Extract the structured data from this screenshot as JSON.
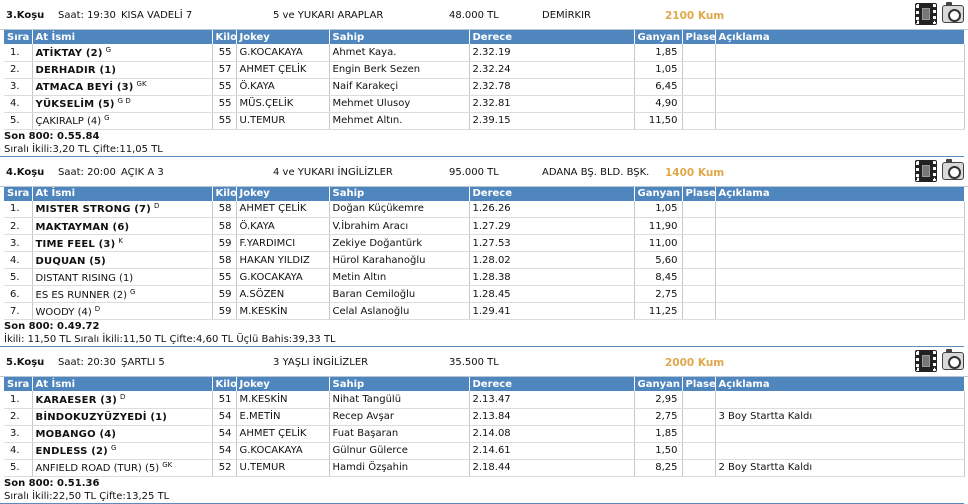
{
  "columns": {
    "sira": "Sıra",
    "at": "At İsmi",
    "kilo": "Kilo",
    "jokey": "Jokey",
    "sahip": "Sahip",
    "derece": "Derece",
    "ganyan": "Ganyan",
    "plase": "Plase",
    "aciklama": "Açıklama"
  },
  "races": [
    {
      "kosu": "3.Koşu",
      "saat": "Saat: 19:30",
      "tip": "KISA VADELİ  7",
      "kosul": "5 ve YUKARI ARAPLAR",
      "ikramiye": "48.000 TL",
      "ek": "DEMİRKIR",
      "pist": "2100 Kum",
      "rows": [
        {
          "sira": "1.",
          "at": "ATİKTAY (2)",
          "sup": "G",
          "bold": true,
          "kilo": "55",
          "jokey": "G.KOCAKAYA",
          "sahip": "Ahmet Kaya.",
          "derece": "2.32.19",
          "ganyan": "1,85",
          "plase": "",
          "aciklama": ""
        },
        {
          "sira": "2.",
          "at": "DERHADIR (1)",
          "sup": "",
          "bold": true,
          "kilo": "57",
          "jokey": "AHMET ÇELİK",
          "sahip": "Engin Berk Sezen",
          "derece": "2.32.24",
          "ganyan": "1,05",
          "plase": "",
          "aciklama": ""
        },
        {
          "sira": "3.",
          "at": "ATMACA BEYİ (3)",
          "sup": "GK",
          "bold": true,
          "kilo": "55",
          "jokey": "Ö.KAYA",
          "sahip": "Naif Karakeçi",
          "derece": "2.32.78",
          "ganyan": "6,45",
          "plase": "",
          "aciklama": ""
        },
        {
          "sira": "4.",
          "at": "YÜKSELİM (5)",
          "sup": "G D",
          "bold": true,
          "kilo": "55",
          "jokey": "MÜS.ÇELİK",
          "sahip": "Mehmet Ulusoy",
          "derece": "2.32.81",
          "ganyan": "4,90",
          "plase": "",
          "aciklama": ""
        },
        {
          "sira": "5.",
          "at": "ÇAKIRALP (4)",
          "sup": "G",
          "bold": false,
          "kilo": "55",
          "jokey": "U.TEMUR",
          "sahip": "Mehmet Altın.",
          "derece": "2.39.15",
          "ganyan": "11,50",
          "plase": "",
          "aciklama": ""
        }
      ],
      "son800": "Son 800: 0.55.84",
      "bahis": "Sıralı İkili:3,20 TL Çifte:11,05 TL"
    },
    {
      "kosu": "4.Koşu",
      "saat": "Saat: 20:00",
      "tip": "AÇIK  A 3",
      "kosul": "4 ve YUKARI İNGİLİZLER",
      "ikramiye": "95.000 TL",
      "ek": "ADANA BŞ. BLD. BŞK.",
      "pist": "1400 Kum",
      "rows": [
        {
          "sira": "1.",
          "at": "MISTER STRONG (7)",
          "sup": "D",
          "bold": true,
          "kilo": "58",
          "jokey": "AHMET ÇELİK",
          "sahip": "Doğan Küçükemre",
          "derece": "1.26.26",
          "ganyan": "1,05",
          "plase": "",
          "aciklama": ""
        },
        {
          "sira": "2.",
          "at": "MAKTAYMAN (6)",
          "sup": "",
          "bold": true,
          "kilo": "58",
          "jokey": "Ö.KAYA",
          "sahip": "V.İbrahim Aracı",
          "derece": "1.27.29",
          "ganyan": "11,90",
          "plase": "",
          "aciklama": ""
        },
        {
          "sira": "3.",
          "at": "TIME FEEL (3)",
          "sup": "K",
          "bold": true,
          "kilo": "59",
          "jokey": "F.YARDIMCI",
          "sahip": "Zekiye Doğantürk",
          "derece": "1.27.53",
          "ganyan": "11,00",
          "plase": "",
          "aciklama": ""
        },
        {
          "sira": "4.",
          "at": "DUQUAN (5)",
          "sup": "",
          "bold": true,
          "kilo": "58",
          "jokey": "HAKAN YILDIZ",
          "sahip": "Hürol Karahanoğlu",
          "derece": "1.28.02",
          "ganyan": "5,60",
          "plase": "",
          "aciklama": ""
        },
        {
          "sira": "5.",
          "at": "DISTANT RISING (1)",
          "sup": "",
          "bold": false,
          "kilo": "55",
          "jokey": "G.KOCAKAYA",
          "sahip": "Metin Altın",
          "derece": "1.28.38",
          "ganyan": "8,45",
          "plase": "",
          "aciklama": ""
        },
        {
          "sira": "6.",
          "at": "ES ES RUNNER (2)",
          "sup": "G",
          "bold": false,
          "kilo": "59",
          "jokey": "A.SÖZEN",
          "sahip": "Baran Cemiloğlu",
          "derece": "1.28.45",
          "ganyan": "2,75",
          "plase": "",
          "aciklama": ""
        },
        {
          "sira": "7.",
          "at": "WOODY (4)",
          "sup": "D",
          "bold": false,
          "kilo": "59",
          "jokey": "M.KESKİN",
          "sahip": "Celal Aslanoğlu",
          "derece": "1.29.41",
          "ganyan": "11,25",
          "plase": "",
          "aciklama": ""
        }
      ],
      "son800": "Son 800: 0.49.72",
      "bahis": "İkili: 11,50 TL Sıralı İkili:11,50 TL Çifte:4,60 TL Üçlü Bahis:39,33 TL"
    },
    {
      "kosu": "5.Koşu",
      "saat": "Saat: 20:30",
      "tip": "ŞARTLI  5",
      "kosul": "3 YAŞLI İNGİLİZLER",
      "ikramiye": "35.500 TL",
      "ek": "",
      "pist": "2000 Kum",
      "rows": [
        {
          "sira": "1.",
          "at": "KARAESER (3)",
          "sup": "D",
          "bold": true,
          "kilo": "51",
          "jokey": "M.KESKİN",
          "sahip": "Nihat Tangülü",
          "derece": "2.13.47",
          "ganyan": "2,95",
          "plase": "",
          "aciklama": ""
        },
        {
          "sira": "2.",
          "at": "BİNDOKUZYÜZYEDİ (1)",
          "sup": "",
          "bold": true,
          "kilo": "54",
          "jokey": "E.METİN",
          "sahip": "Recep Avşar",
          "derece": "2.13.84",
          "ganyan": "2,75",
          "plase": "",
          "aciklama": "3 Boy Startta Kaldı"
        },
        {
          "sira": "3.",
          "at": "MOBANGO (4)",
          "sup": "",
          "bold": true,
          "kilo": "54",
          "jokey": "AHMET ÇELİK",
          "sahip": "Fuat Başaran",
          "derece": "2.14.08",
          "ganyan": "1,85",
          "plase": "",
          "aciklama": ""
        },
        {
          "sira": "4.",
          "at": "ENDLESS (2)",
          "sup": "G",
          "bold": true,
          "kilo": "54",
          "jokey": "G.KOCAKAYA",
          "sahip": "Gülnur Gülerce",
          "derece": "2.14.61",
          "ganyan": "1,50",
          "plase": "",
          "aciklama": ""
        },
        {
          "sira": "5.",
          "at": "ANFIELD ROAD (TUR) (5)",
          "sup": "GK",
          "bold": false,
          "kilo": "52",
          "jokey": "U.TEMUR",
          "sahip": "Hamdi Özşahin",
          "derece": "2.18.44",
          "ganyan": "8,25",
          "plase": "",
          "aciklama": "2 Boy Startta Kaldı"
        }
      ],
      "son800": "Son 800: 0.51.36",
      "bahis": "Sıralı İkili:22,50 TL Çifte:13,25 TL"
    }
  ]
}
